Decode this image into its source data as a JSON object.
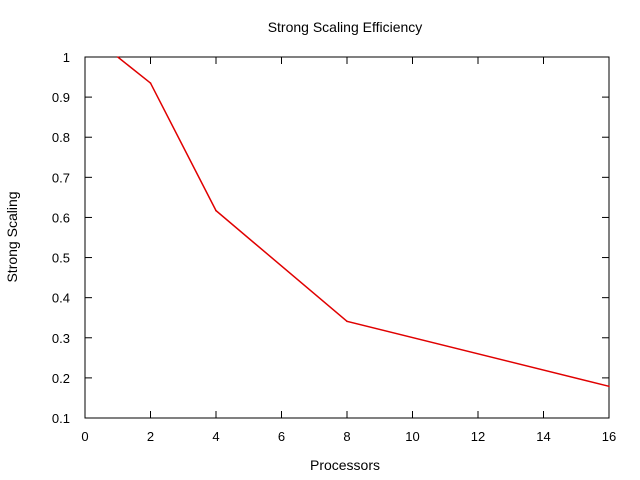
{
  "chart_data": {
    "type": "line",
    "title": "Strong Scaling Efficiency",
    "xlabel": "Processors",
    "ylabel": "Strong Scaling",
    "xlim": [
      0,
      16
    ],
    "ylim": [
      0.1,
      1
    ],
    "xticks": [
      0,
      2,
      4,
      6,
      8,
      10,
      12,
      14,
      16
    ],
    "yticks": [
      0.1,
      0.2,
      0.3,
      0.4,
      0.5,
      0.6,
      0.7,
      0.8,
      0.9,
      1
    ],
    "grid": false,
    "series": [
      {
        "color": "#e00000",
        "x": [
          1,
          2,
          4,
          8,
          16
        ],
        "y": [
          1.0,
          0.935,
          0.617,
          0.341,
          0.179
        ]
      }
    ]
  }
}
